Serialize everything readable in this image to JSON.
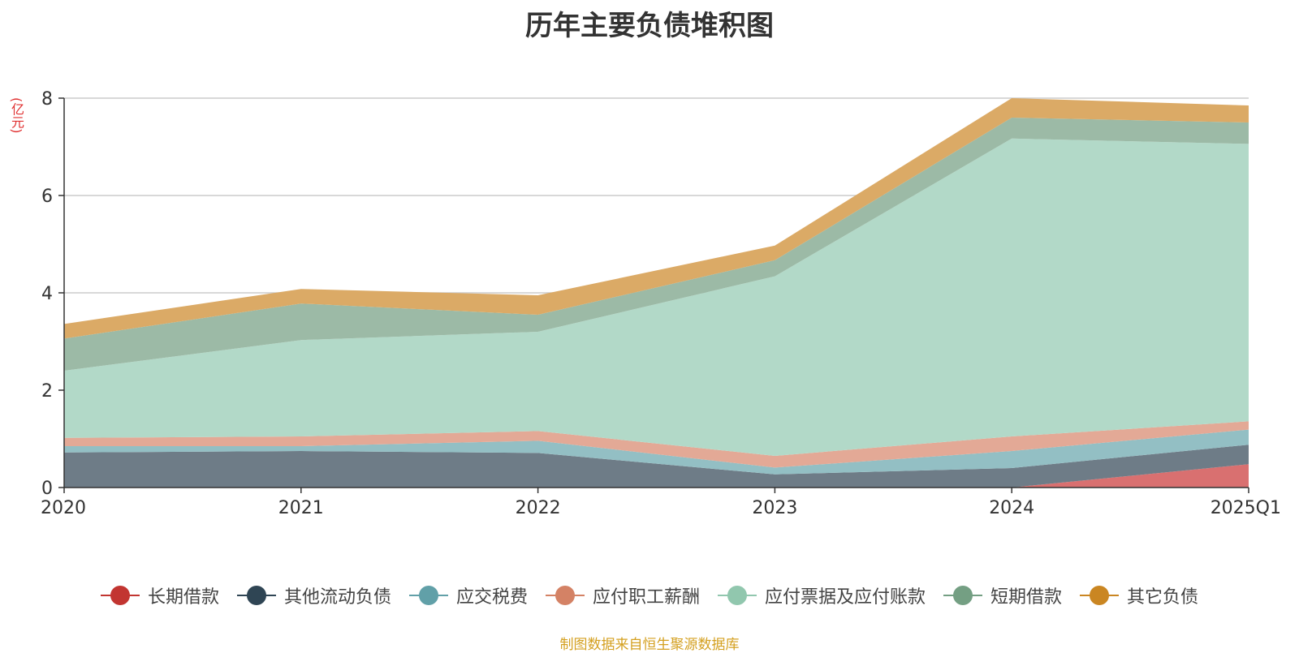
{
  "chart_data": {
    "type": "area",
    "stacked": true,
    "title": "历年主要负债堆积图",
    "ylabel": "(亿元)",
    "xlabel": "",
    "categories": [
      "2020",
      "2021",
      "2022",
      "2023",
      "2024",
      "2025Q1"
    ],
    "ylim": [
      0,
      8
    ],
    "yticks": [
      0,
      2,
      4,
      6,
      8
    ],
    "grid": true,
    "legend_position": "bottom",
    "series": [
      {
        "name": "长期借款",
        "color": "#c23531",
        "fill": "#d97070",
        "values": [
          0,
          0,
          0,
          0,
          0,
          0.48
        ]
      },
      {
        "name": "其他流动负债",
        "color": "#2f4554",
        "fill": "#6e7c87",
        "values": [
          0.72,
          0.75,
          0.71,
          0.27,
          0.4,
          0.4
        ]
      },
      {
        "name": "应交税费",
        "color": "#61a0a8",
        "fill": "#93bfc4",
        "values": [
          0.13,
          0.1,
          0.25,
          0.14,
          0.35,
          0.31
        ]
      },
      {
        "name": "应付职工薪酬",
        "color": "#d48265",
        "fill": "#e3a996",
        "values": [
          0.17,
          0.2,
          0.2,
          0.24,
          0.3,
          0.17
        ]
      },
      {
        "name": "应付票据及应付账款",
        "color": "#91c7ae",
        "fill": "#b2d9c8",
        "values": [
          1.38,
          1.98,
          2.04,
          3.69,
          6.12,
          5.7
        ]
      },
      {
        "name": "短期借款",
        "color": "#749f83",
        "fill": "#9cbaa6",
        "values": [
          0.66,
          0.75,
          0.35,
          0.33,
          0.43,
          0.44
        ]
      },
      {
        "name": "其它负债",
        "color": "#ca8622",
        "fill": "#dbaa66",
        "values": [
          0.3,
          0.3,
          0.4,
          0.3,
          0.4,
          0.35
        ]
      }
    ]
  },
  "footer": {
    "source": "制图数据来自恒生聚源数据库"
  }
}
